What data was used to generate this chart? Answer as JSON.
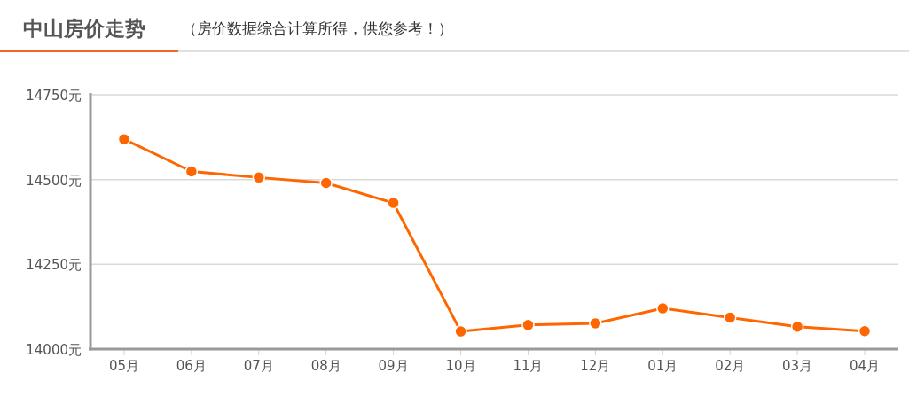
{
  "chart_data": {
    "type": "line",
    "title": "中山房价走势",
    "subtitle": "（房价数据综合计算所得，供您参考！）",
    "categories": [
      "05月",
      "06月",
      "07月",
      "08月",
      "09月",
      "10月",
      "11月",
      "12月",
      "01月",
      "02月",
      "03月",
      "04月"
    ],
    "series": [
      {
        "color": "#ff6600",
        "values": [
          14619,
          14524,
          14506,
          14490,
          14431,
          14052,
          14071,
          14076,
          14120,
          14093,
          14066,
          14053
        ]
      }
    ],
    "ylim": [
      14000,
      14750
    ],
    "yticks": [
      {
        "value": 14000,
        "label": "14000元"
      },
      {
        "value": 14250,
        "label": "14250元"
      },
      {
        "value": 14500,
        "label": "14500元"
      },
      {
        "value": 14750,
        "label": "14750元"
      }
    ],
    "grid": "y",
    "marker": "circle",
    "line_style": "solid"
  }
}
